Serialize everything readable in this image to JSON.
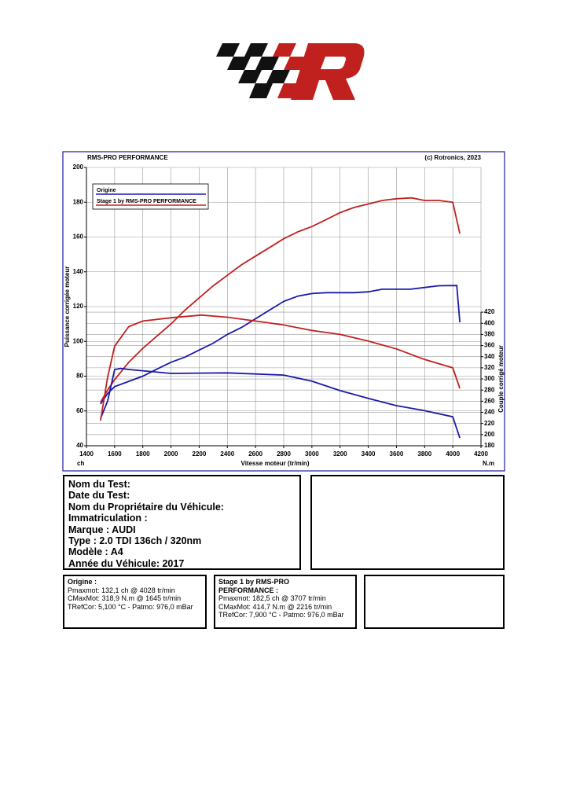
{
  "chart_data": {
    "type": "line",
    "header_left": "RMS-PRO PERFORMANCE",
    "header_right": "(c) Rotronics, 2023",
    "x_label": "Vitesse moteur (tr/min)",
    "y_label": "Puissance corrigée moteur",
    "y2_label": "Couple corrigé moteur",
    "y_unit": "ch",
    "y2_unit": "N.m",
    "xlim": [
      1400,
      4200
    ],
    "xticks": [
      1400,
      1600,
      1800,
      2000,
      2200,
      2400,
      2600,
      2800,
      3000,
      3200,
      3400,
      3600,
      3800,
      4000,
      4200
    ],
    "ylim": [
      40,
      200
    ],
    "yticks": [
      40,
      60,
      80,
      100,
      120,
      140,
      160,
      180,
      200
    ],
    "y2lim": [
      180,
      680
    ],
    "y2ticks": [
      180,
      200,
      220,
      240,
      260,
      280,
      300,
      320,
      340,
      360,
      380,
      400,
      420
    ],
    "grid": true,
    "legend": [
      {
        "name": "Origine",
        "color": "#1a1aa8"
      },
      {
        "name": "Stage 1 by RMS-PRO PERFORMANCE",
        "color": "#c0211f"
      }
    ],
    "series": [
      {
        "color": "#1a1aa8",
        "axis": "y",
        "x": [
          1500,
          1550,
          1600,
          1700,
          1800,
          1900,
          2000,
          2100,
          2200,
          2300,
          2400,
          2500,
          2600,
          2700,
          2800,
          2900,
          3000,
          3100,
          3200,
          3300,
          3400,
          3500,
          3600,
          3700,
          3800,
          3900,
          4028,
          4050
        ],
        "values": [
          64,
          70,
          74,
          77,
          80,
          84,
          88,
          91,
          95,
          99,
          104,
          108,
          113,
          118,
          123,
          126,
          127.5,
          128,
          128,
          128,
          128.5,
          130,
          130,
          130,
          131,
          132,
          132.1,
          111
        ]
      },
      {
        "color": "#c0211f",
        "axis": "y",
        "x": [
          1500,
          1550,
          1600,
          1700,
          1800,
          1900,
          2000,
          2100,
          2200,
          2300,
          2400,
          2500,
          2600,
          2700,
          2800,
          2900,
          3000,
          3100,
          3200,
          3300,
          3400,
          3500,
          3600,
          3707,
          3800,
          3900,
          4000,
          4050
        ],
        "values": [
          65,
          72,
          78,
          88,
          96,
          103,
          110,
          118,
          125,
          132,
          138,
          144,
          149,
          154,
          159,
          163,
          166,
          170,
          174,
          177,
          179,
          181,
          182,
          182.5,
          181,
          181,
          180,
          162
        ]
      },
      {
        "color": "#1a1aa8",
        "axis": "y2",
        "x": [
          1500,
          1550,
          1600,
          1645,
          1700,
          2000,
          2400,
          2800,
          3000,
          3200,
          3400,
          3600,
          3800,
          4000,
          4050
        ],
        "values": [
          229,
          260,
          317,
          318.9,
          317,
          310,
          311,
          307,
          296,
          279,
          265,
          252,
          243,
          232,
          194
        ]
      },
      {
        "color": "#c0211f",
        "axis": "y2",
        "x": [
          1500,
          1550,
          1600,
          1700,
          1800,
          2000,
          2216,
          2400,
          2600,
          2800,
          3000,
          3200,
          3400,
          3600,
          3800,
          4000,
          4050
        ],
        "values": [
          225,
          303,
          359,
          394,
          404,
          410,
          414.7,
          411,
          404,
          397,
          387,
          380,
          368,
          354,
          335,
          320,
          283
        ]
      }
    ]
  },
  "info": {
    "lines": [
      "Nom du Test:",
      "Date du Test:",
      "Nom du Propriétaire du Véhicule:",
      "Immatriculation  :",
      "Marque  : AUDI",
      "Type  : 2.0 TDI 136ch / 320nm",
      "Modèle  : A4",
      "Année du Véhicule: 2017"
    ]
  },
  "results": [
    {
      "heading": [
        "Origine :"
      ],
      "lines": [
        "Pmaxmot: 132,1 ch @ 4028 tr/min",
        "CMaxMot: 318,9 N.m @ 1645 tr/min",
        "TRefCor: 5,100 °C - Patmo: 976,0 mBar"
      ]
    },
    {
      "heading": [
        "Stage 1 by RMS-PRO",
        "PERFORMANCE :"
      ],
      "lines": [
        "Pmaxmot: 182,5 ch @ 3707 tr/min",
        "CMaxMot: 414,7 N.m @ 2216 tr/min",
        "TRefCor: 7,900 °C - Patmo: 976,0 mBar"
      ]
    }
  ]
}
